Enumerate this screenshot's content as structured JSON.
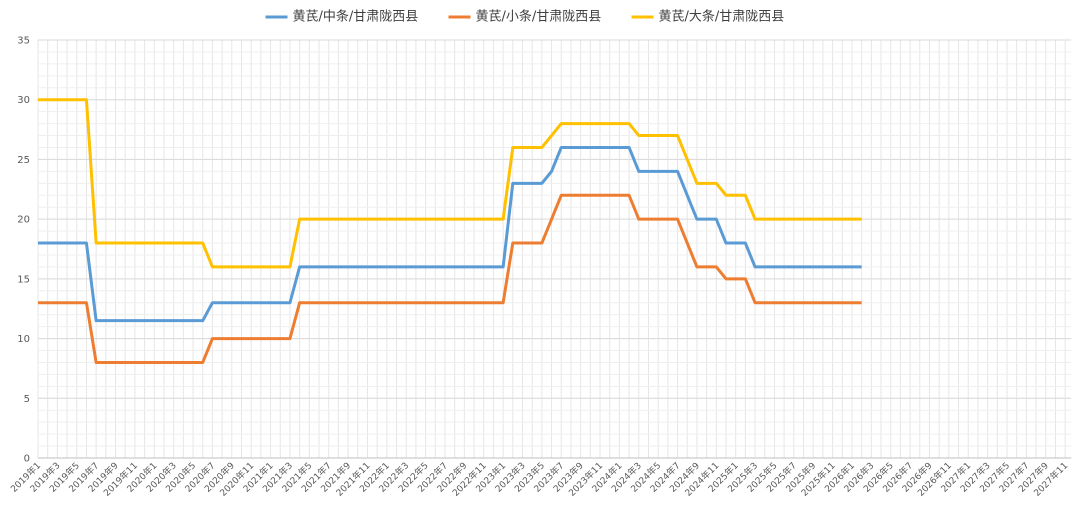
{
  "chart_data": {
    "type": "line",
    "categories": [
      "2019年1",
      null,
      "2019年3",
      null,
      "2019年5",
      null,
      "2019年7",
      null,
      "2019年9",
      null,
      "2019年11",
      null,
      "2020年1",
      null,
      "2020年3",
      null,
      "2020年5",
      null,
      "2020年7",
      null,
      "2020年9",
      null,
      "2020年11",
      null,
      "2021年1",
      null,
      "2021年3",
      null,
      "2021年5",
      null,
      "2021年7",
      null,
      "2021年9",
      null,
      "2021年11",
      null,
      "2022年1",
      null,
      "2022年3",
      null,
      "2022年5",
      null,
      "2022年7",
      null,
      "2022年9",
      null,
      "2022年11",
      null,
      "2023年1",
      null,
      "2023年3",
      null,
      "2023年5",
      null,
      "2023年7",
      null,
      "2023年9",
      null,
      "2023年11",
      null,
      "2024年1",
      null,
      "2024年3",
      null,
      "2024年5",
      null,
      "2024年7",
      null,
      "2024年9",
      null,
      "2024年11",
      null,
      "2025年1",
      null,
      "2025年3",
      null,
      "2025年5",
      null,
      "2025年7",
      null,
      "2025年9",
      null,
      "2025年11",
      null,
      "2026年1",
      null,
      "2026年3",
      null,
      "2026年5",
      null,
      "2026年7",
      null,
      "2026年9",
      null,
      "2026年11",
      null,
      "2027年1",
      null,
      "2027年3",
      null,
      "2027年5",
      null,
      "2027年7",
      null,
      "2027年9",
      null,
      "2027年11"
    ],
    "series": [
      {
        "name": "黄芪/中条/甘肃陇西县",
        "color": "#5b9bd5",
        "values": [
          18,
          18,
          18,
          18,
          18,
          18,
          11.5,
          11.5,
          11.5,
          11.5,
          11.5,
          11.5,
          11.5,
          11.5,
          11.5,
          11.5,
          11.5,
          11.5,
          13,
          13,
          13,
          13,
          13,
          13,
          13,
          13,
          13,
          16,
          16,
          16,
          16,
          16,
          16,
          16,
          16,
          16,
          16,
          16,
          16,
          16,
          16,
          16,
          16,
          16,
          16,
          16,
          16,
          16,
          16,
          23,
          23,
          23,
          23,
          24,
          26,
          26,
          26,
          26,
          26,
          26,
          26,
          26,
          24,
          24,
          24,
          24,
          24,
          22,
          20,
          20,
          20,
          18,
          18,
          18,
          16,
          16,
          16,
          16,
          16,
          16,
          16,
          16,
          16,
          16,
          16,
          16,
          null,
          null,
          null,
          null,
          null,
          null,
          null,
          null,
          null,
          null,
          null,
          null,
          null,
          null,
          null,
          null,
          null,
          null,
          null,
          null,
          null
        ]
      },
      {
        "name": "黄芪/小条/甘肃陇西县",
        "color": "#ed7d31",
        "values": [
          13,
          13,
          13,
          13,
          13,
          13,
          8,
          8,
          8,
          8,
          8,
          8,
          8,
          8,
          8,
          8,
          8,
          8,
          10,
          10,
          10,
          10,
          10,
          10,
          10,
          10,
          10,
          13,
          13,
          13,
          13,
          13,
          13,
          13,
          13,
          13,
          13,
          13,
          13,
          13,
          13,
          13,
          13,
          13,
          13,
          13,
          13,
          13,
          13,
          18,
          18,
          18,
          18,
          20,
          22,
          22,
          22,
          22,
          22,
          22,
          22,
          22,
          20,
          20,
          20,
          20,
          20,
          18,
          16,
          16,
          16,
          15,
          15,
          15,
          13,
          13,
          13,
          13,
          13,
          13,
          13,
          13,
          13,
          13,
          13,
          13,
          null,
          null,
          null,
          null,
          null,
          null,
          null,
          null,
          null,
          null,
          null,
          null,
          null,
          null,
          null,
          null,
          null,
          null,
          null,
          null,
          null
        ]
      },
      {
        "name": "黄芪/大条/甘肃陇西县",
        "color": "#ffc000",
        "values": [
          30,
          30,
          30,
          30,
          30,
          30,
          18,
          18,
          18,
          18,
          18,
          18,
          18,
          18,
          18,
          18,
          18,
          18,
          16,
          16,
          16,
          16,
          16,
          16,
          16,
          16,
          16,
          20,
          20,
          20,
          20,
          20,
          20,
          20,
          20,
          20,
          20,
          20,
          20,
          20,
          20,
          20,
          20,
          20,
          20,
          20,
          20,
          20,
          20,
          26,
          26,
          26,
          26,
          27,
          28,
          28,
          28,
          28,
          28,
          28,
          28,
          28,
          27,
          27,
          27,
          27,
          27,
          25,
          23,
          23,
          23,
          22,
          22,
          22,
          20,
          20,
          20,
          20,
          20,
          20,
          20,
          20,
          20,
          20,
          20,
          20,
          null,
          null,
          null,
          null,
          null,
          null,
          null,
          null,
          null,
          null,
          null,
          null,
          null,
          null,
          null,
          null,
          null,
          null,
          null,
          null,
          null
        ]
      }
    ],
    "ylim": [
      0,
      35
    ],
    "yticks": [
      0,
      5,
      10,
      15,
      20,
      25,
      30,
      35
    ],
    "grid": true,
    "legend": "top"
  }
}
